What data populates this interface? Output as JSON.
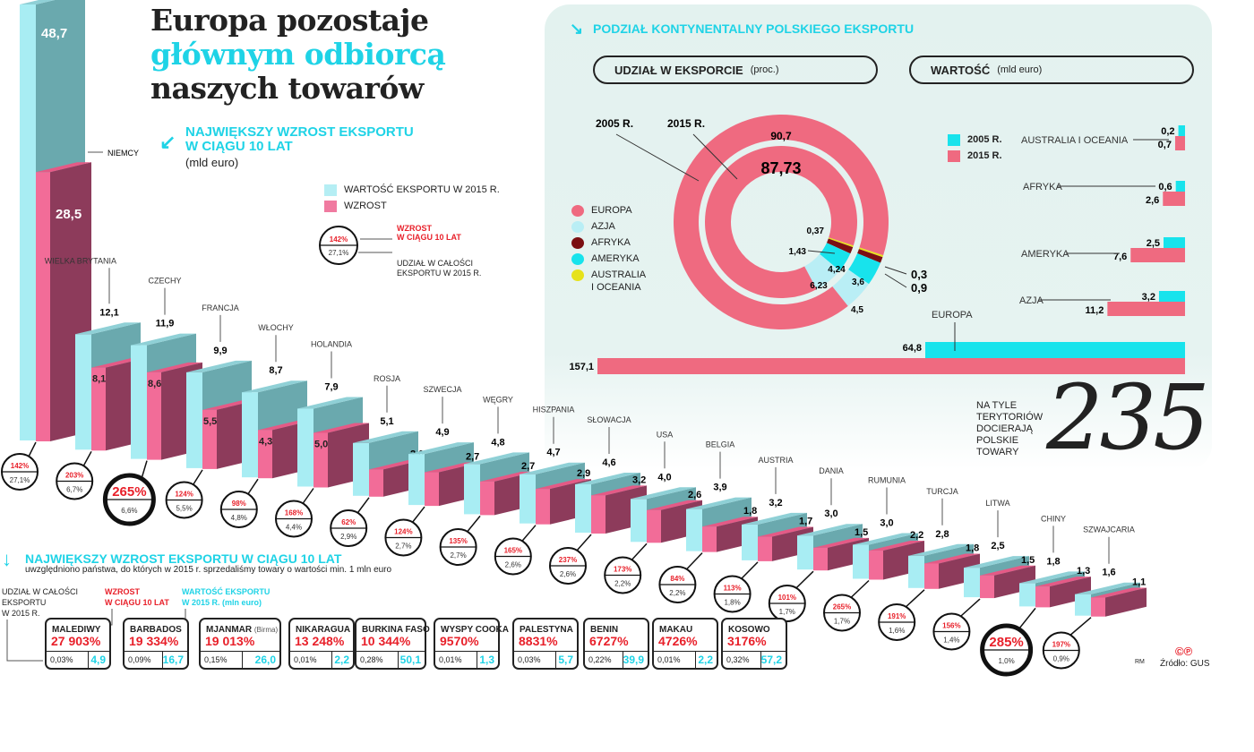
{
  "title": {
    "line1": "Europa pozostaje",
    "line2": "głównym odbiorcą",
    "line3": "naszych towarów"
  },
  "colors": {
    "cyan": "#1fd3e6",
    "light_blue": "#a8edf3",
    "teal": "#6aa9ae",
    "pink": "#f06c95",
    "maroon": "#8d3b5b",
    "red": "#e8202a",
    "europa": "#ef6a80",
    "azja": "#b9eef5",
    "afryka": "#7b0f12",
    "ameryka": "#18e3ec",
    "australia": "#e6e21b"
  },
  "growth_section": {
    "heading_line1": "NAJWIĘKSZY WZROST EKSPORTU",
    "heading_line2": "W CIĄGU 10 LAT",
    "unit": "(mld euro)",
    "legend_value": "WARTOŚĆ EKSPORTU W 2015 R.",
    "legend_growth": "WZROST",
    "key_circle_pct": "142%",
    "key_circle_share": "27,1%",
    "key_label_growth_line1": "WZROST",
    "key_label_growth_line2": "W CIĄGU 10 LAT",
    "key_label_share_line1": "UDZIAŁ W CAŁOŚCI",
    "key_label_share_line2": "EKSPORTU W 2015 R."
  },
  "chart_data": [
    {
      "type": "bar",
      "title": "NAJWIĘKSZY WZROST EKSPORTU W CIĄGU 10 LAT (mld euro)",
      "categories": [
        "NIEMCY",
        "WIELKA BRYTANIA",
        "CZECHY",
        "FRANCJA",
        "WŁOCHY",
        "HOLANDIA",
        "ROSJA",
        "SZWECJA",
        "WĘGRY",
        "HISZPANIA",
        "SŁOWACJA",
        "USA",
        "BELGIA",
        "AUSTRIA",
        "DANIA",
        "RUMUNIA",
        "TURCJA",
        "LITWA",
        "CHINY",
        "SZWAJCARIA"
      ],
      "series": [
        {
          "name": "WARTOŚĆ EKSPORTU W 2015 R.",
          "values": [
            48.7,
            12.1,
            11.9,
            9.9,
            8.7,
            7.9,
            5.1,
            4.9,
            4.8,
            4.7,
            4.6,
            4.0,
            3.9,
            3.2,
            3.0,
            3.0,
            2.8,
            2.5,
            1.8,
            1.6
          ],
          "labels": [
            "48,7",
            "12,1",
            "11,9",
            "9,9",
            "8,7",
            "7,9",
            "5,1",
            "4,9",
            "4,8",
            "4,7",
            "4,6",
            "4,0",
            "3,9",
            "3,2",
            "3,0",
            "3,0",
            "2,8",
            "2,5",
            "1,8",
            "1,6"
          ]
        },
        {
          "name": "WZROST",
          "values": [
            28.5,
            8.1,
            8.6,
            5.5,
            4.3,
            5.0,
            2.0,
            2.7,
            2.7,
            2.9,
            3.2,
            2.6,
            1.8,
            1.7,
            1.5,
            2.2,
            1.8,
            1.5,
            1.3,
            1.1
          ],
          "labels": [
            "28,5",
            "8,1",
            "8,6",
            "5,5",
            "4,3",
            "5,0",
            "2,0",
            "2,7",
            "2,7",
            "2,9",
            "3,2",
            "2,6",
            "1,8",
            "1,7",
            "1,5",
            "2,2",
            "1,8",
            "1,5",
            "1,3",
            "1,1"
          ]
        }
      ],
      "growth_pct": [
        "142%",
        "203%",
        "265%",
        "124%",
        "98%",
        "168%",
        "62%",
        "124%",
        "135%",
        "165%",
        "237%",
        "173%",
        "84%",
        "113%",
        "101%",
        "265%",
        "191%",
        "156%",
        "285%",
        "197%"
      ],
      "share_2015": [
        "27,1%",
        "6,7%",
        "6,6%",
        "5,5%",
        "4,8%",
        "4,4%",
        "2,9%",
        "2,7%",
        "2,7%",
        "2,6%",
        "2,6%",
        "2,2%",
        "2,2%",
        "1,8%",
        "1,7%",
        "1,7%",
        "1,6%",
        "1,4%",
        "1,0%",
        "0,9%"
      ],
      "highlighted": [
        2,
        18
      ]
    },
    {
      "type": "pie",
      "title": "UDZIAŁ W EKSPORCIE (proc.)",
      "categories": [
        "EUROPA",
        "AZJA",
        "AFRYKA",
        "AMERYKA",
        "AUSTRALIA I OCEANIA"
      ],
      "series": [
        {
          "name": "2005 R.",
          "values": [
            90.7,
            4.5,
            0.9,
            3.6,
            0.3
          ],
          "labels": [
            "90,7",
            "4,5",
            "0,9",
            "3,6",
            "0,3"
          ]
        },
        {
          "name": "2015 R.",
          "values": [
            87.73,
            6.23,
            1.43,
            4.24,
            0.37
          ],
          "labels": [
            "87,73",
            "6,23",
            "1,43",
            "4,24",
            "0,37"
          ]
        }
      ]
    },
    {
      "type": "bar",
      "title": "WARTOŚĆ (mld euro)",
      "categories": [
        "AUSTRALIA I OCEANIA",
        "AFRYKA",
        "AMERYKA",
        "AZJA",
        "EUROPA"
      ],
      "series": [
        {
          "name": "2005 R.",
          "values": [
            0.2,
            0.6,
            2.5,
            3.2,
            64.8
          ],
          "labels": [
            "0,2",
            "0,6",
            "2,5",
            "3,2",
            "64,8"
          ]
        },
        {
          "name": "2015 R.",
          "values": [
            0.7,
            2.6,
            7.6,
            11.2,
            157.1
          ],
          "labels": [
            "0,7",
            "2,6",
            "7,6",
            "11,2",
            "157,1"
          ]
        }
      ]
    }
  ],
  "continent_panel": {
    "heading": "PODZIAŁ KONTYNENTALNY POLSKIEGO EKSPORTU",
    "share_box": {
      "label": "UDZIAŁ W EKSPORCIE",
      "unit": "(proc.)"
    },
    "value_box": {
      "label": "WARTOŚĆ",
      "unit": "(mld euro)"
    },
    "ring_labels": [
      "2005 R.",
      "2015 R."
    ],
    "legend": [
      "EUROPA",
      "AZJA",
      "AFRYKA",
      "AMERYKA",
      "AUSTRALIA",
      "I OCEANIA"
    ],
    "bar_legend": [
      "2005 R.",
      "2015 R."
    ]
  },
  "territories": {
    "text": [
      "NA TYLE",
      "TERYTORIÓW",
      "DOCIERAJĄ",
      "POLSKIE",
      "TOWARY"
    ],
    "number": "235"
  },
  "top_growth": {
    "heading": "NAJWIĘKSZY WZROST EKSPORTU W CIĄGU 10 LAT",
    "subheading": "uwzględniono państwa, do których w 2015 r. sprzedaliśmy towary o wartości min. 1 mln euro",
    "label_share": [
      "UDZIAŁ W CAŁOŚCI",
      "EKSPORTU",
      "W 2015 R."
    ],
    "label_growth": [
      "WZROST",
      "W CIĄGU 10 LAT"
    ],
    "label_value": [
      "WARTOŚĆ EKSPORTU",
      "W 2015 R. (mln euro)"
    ],
    "items": [
      {
        "name": "MALEDIWY",
        "note": "",
        "pct": "27 903%",
        "share": "0,03%",
        "value": "4,9"
      },
      {
        "name": "BARBADOS",
        "note": "",
        "pct": "19 334%",
        "share": "0,09%",
        "value": "16,7"
      },
      {
        "name": "MJANMAR",
        "note": "(Birma)",
        "pct": "19 013%",
        "share": "0,15%",
        "value": "26,0"
      },
      {
        "name": "NIKARAGUA",
        "note": "",
        "pct": "13 248%",
        "share": "0,01%",
        "value": "2,2"
      },
      {
        "name": "BURKINA FASO",
        "note": "",
        "pct": "10 344%",
        "share": "0,28%",
        "value": "50,1"
      },
      {
        "name": "WYSPY COOKA",
        "note": "",
        "pct": "9570%",
        "share": "0,01%",
        "value": "1,3"
      },
      {
        "name": "PALESTYNA",
        "note": "",
        "pct": "8831%",
        "share": "0,03%",
        "value": "5,7"
      },
      {
        "name": "BENIN",
        "note": "",
        "pct": "6727%",
        "share": "0,22%",
        "value": "39,9"
      },
      {
        "name": "MAKAU",
        "note": "",
        "pct": "4726%",
        "share": "0,01%",
        "value": "2,2"
      },
      {
        "name": "KOSOWO",
        "note": "",
        "pct": "3176%",
        "share": "0,32%",
        "value": "57,2"
      }
    ]
  },
  "footer": {
    "author": "RM",
    "source": "Źródło: GUS",
    "copyright": "©℗"
  }
}
